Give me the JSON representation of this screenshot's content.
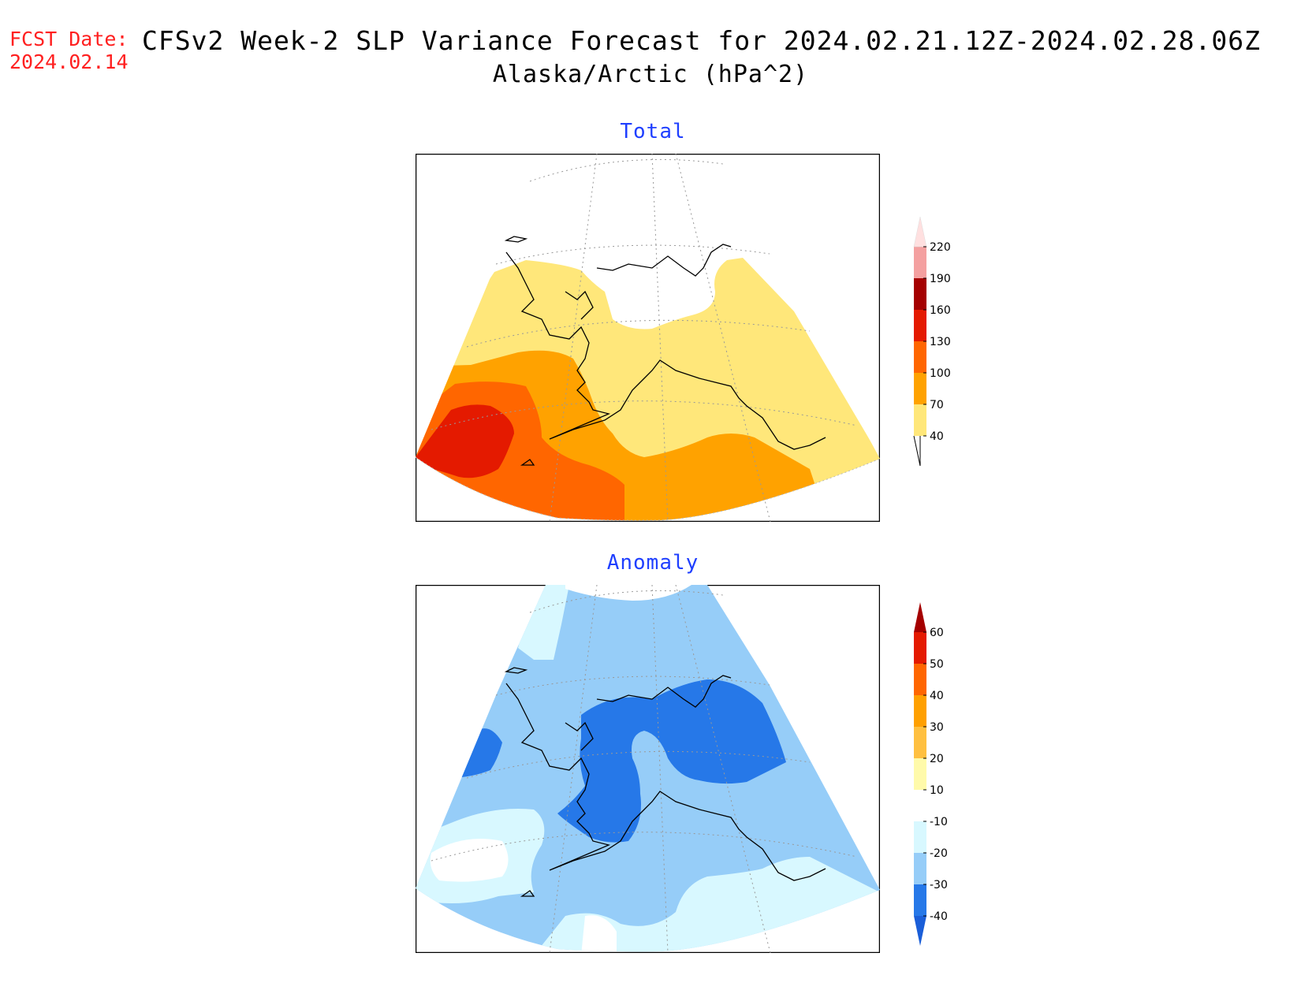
{
  "header": {
    "fcst_label": "FCST Date:",
    "fcst_date": "2024.02.14",
    "title_line1": "CFSv2 Week-2 SLP Variance Forecast for 2024.02.21.12Z-2024.02.28.06Z",
    "title_line2": "Alaska/Arctic (hPa^2)"
  },
  "panels": [
    {
      "title": "Total",
      "colorbar": {
        "labels": [
          "40",
          "70",
          "100",
          "130",
          "160",
          "190",
          "220"
        ],
        "colors": [
          "#ffe77a",
          "#ffa200",
          "#ff6600",
          "#e41a00",
          "#a50000",
          "#f4a0a0",
          "#ffe0e0"
        ]
      }
    },
    {
      "title": "Anomaly",
      "colorbar": {
        "labels": [
          "-40",
          "-30",
          "-20",
          "-10",
          "10",
          "20",
          "30",
          "40",
          "50",
          "60"
        ],
        "colors": [
          "#2678e8",
          "#96cdf8",
          "#d8f8ff",
          "#ffffff",
          "#fffaaa",
          "#ffc040",
          "#ffa000",
          "#ff6600",
          "#e41a00",
          "#a50000"
        ],
        "end_low": "#1a5ed8",
        "end_high": "#a50000"
      }
    }
  ]
}
